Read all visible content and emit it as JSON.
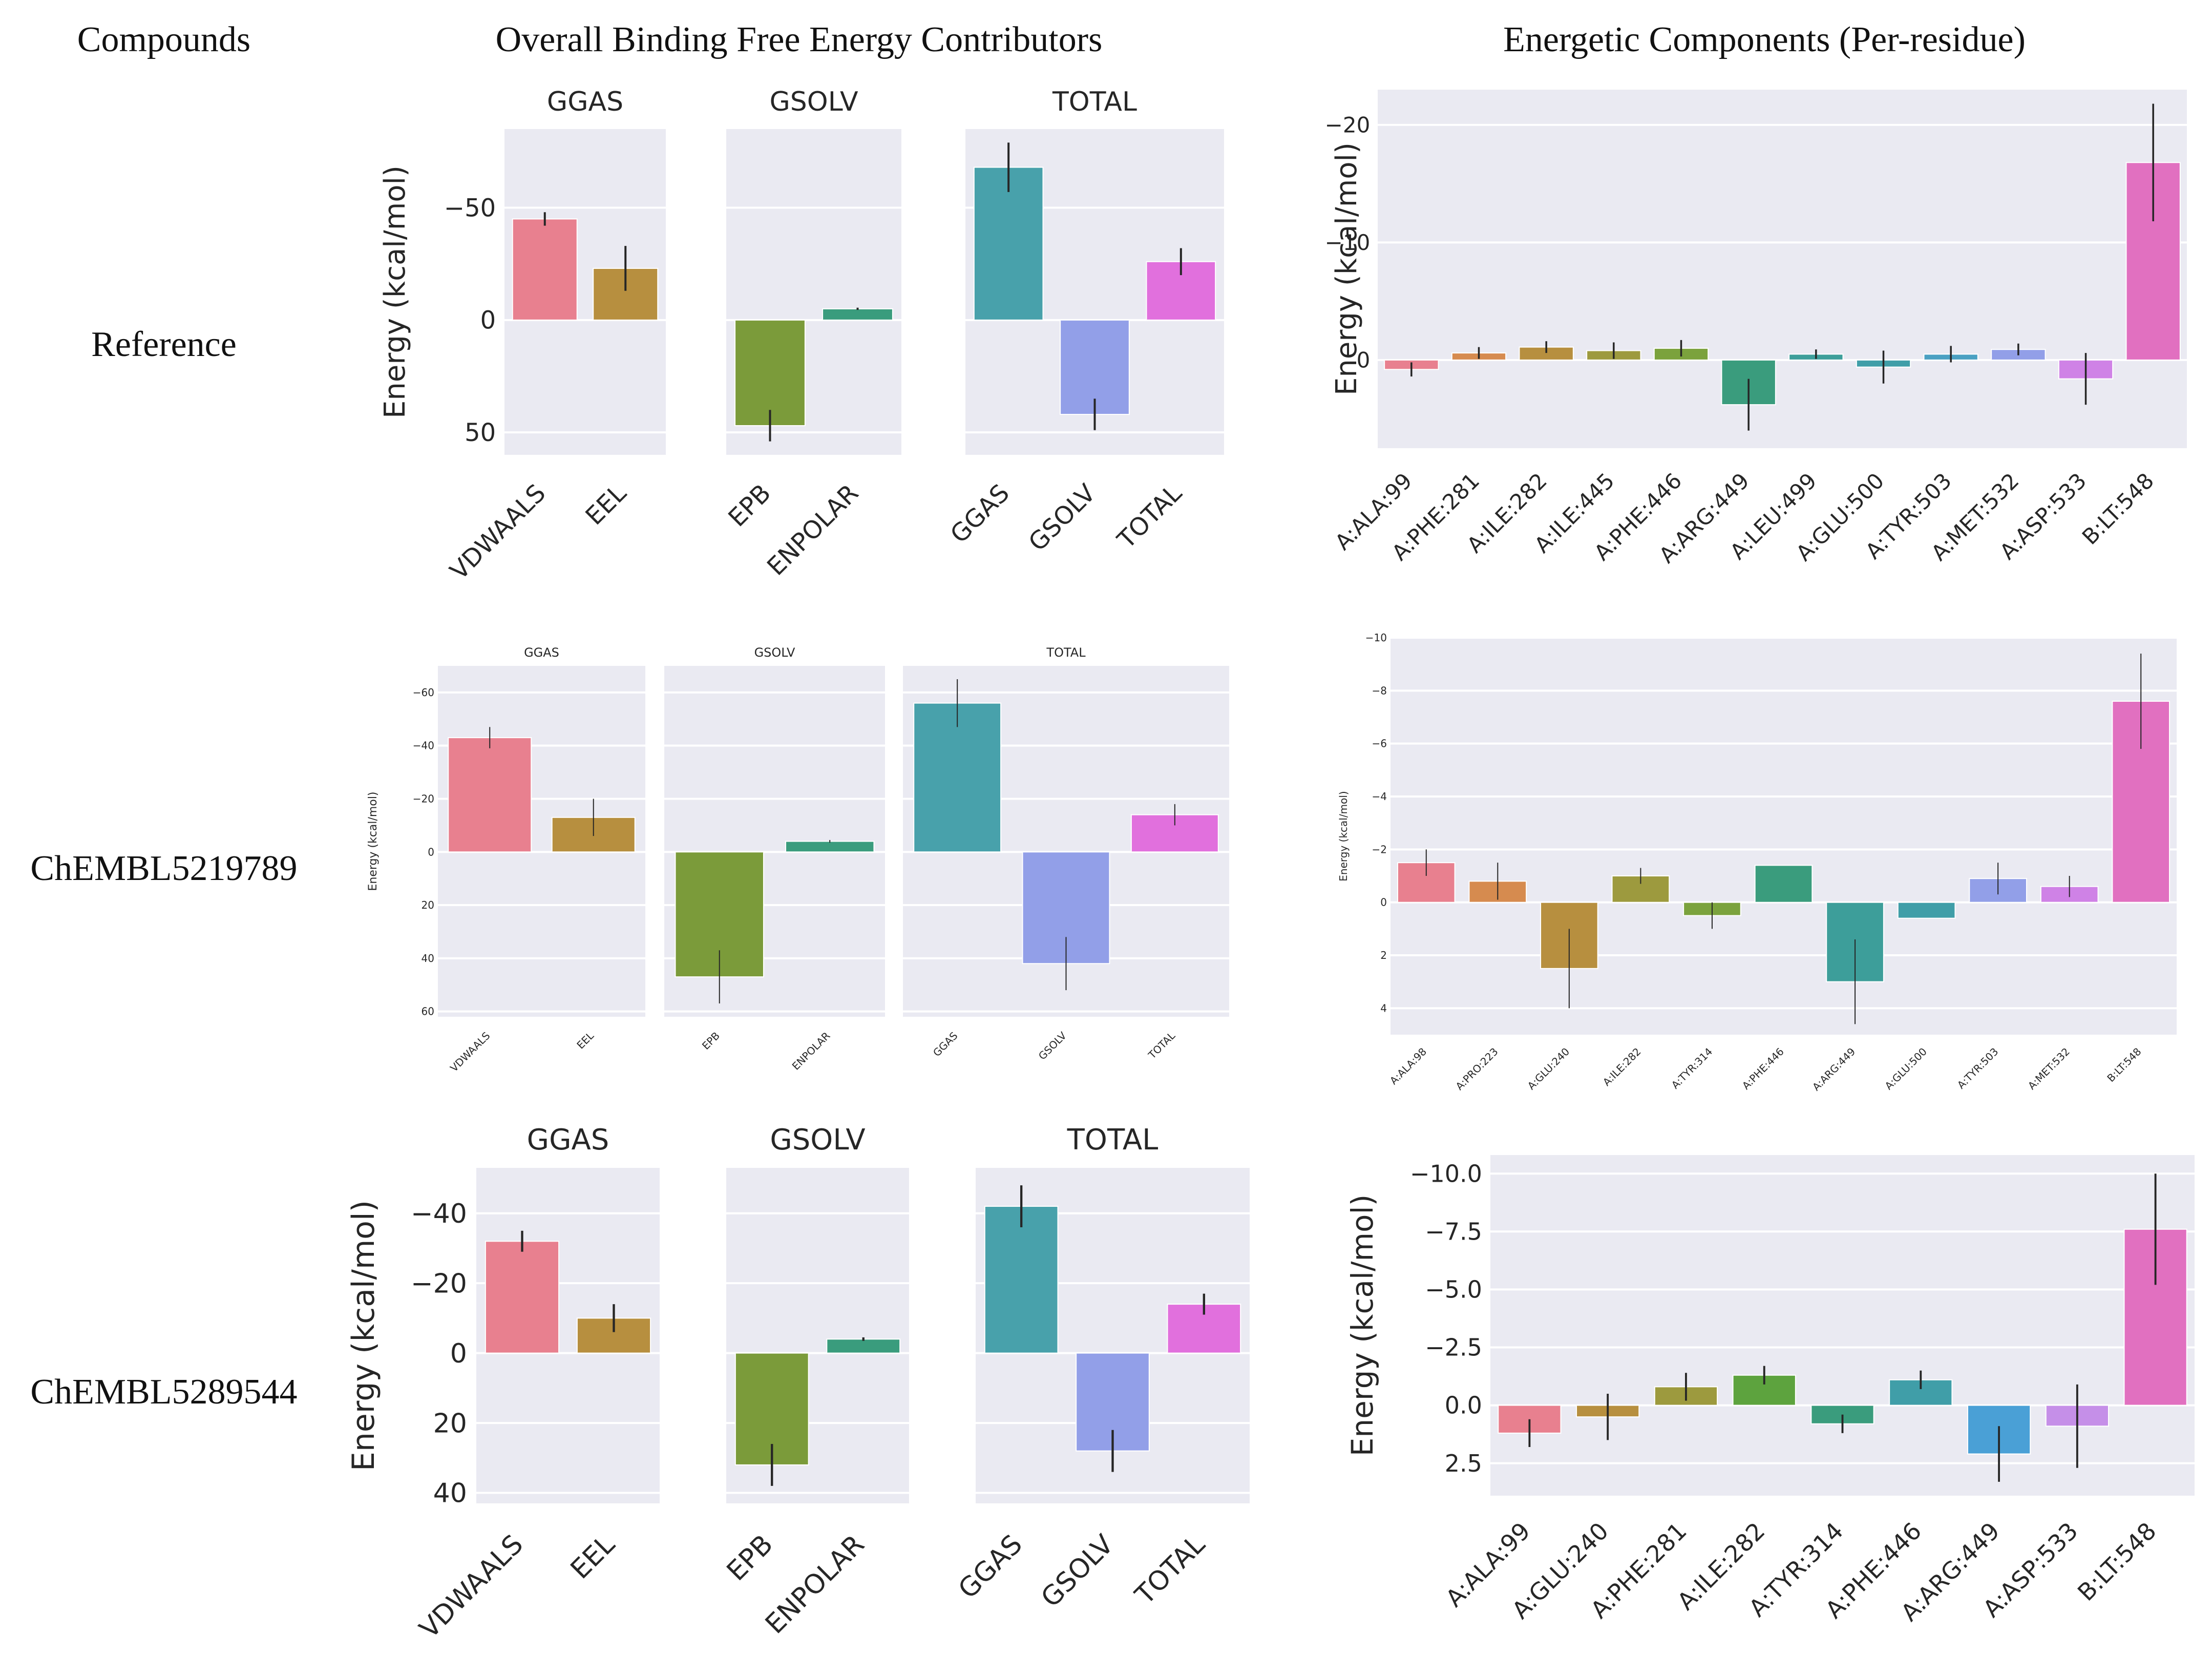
{
  "headers": {
    "compounds": "Compounds",
    "overall": "Overall Binding Free Energy Contributors",
    "per_residue": "Energetic Components (Per-residue)"
  },
  "rows": [
    {
      "label": "Reference"
    },
    {
      "label": "ChEMBL5219789"
    },
    {
      "label": "ChEMBL5289544"
    }
  ],
  "chart_data": [
    {
      "id": "reference-overall",
      "type": "bar",
      "ylabel": "Energy (kcal/mol)",
      "ylim": [
        60,
        -85
      ],
      "yticks": [
        -50,
        0,
        50
      ],
      "grid": true,
      "panels": [
        {
          "title": "GGAS",
          "categories": [
            "VDWAALS",
            "EEL"
          ],
          "values": [
            -45,
            -23
          ],
          "errors": [
            3,
            10
          ],
          "colors": [
            "#e8808f",
            "#b78f3f"
          ]
        },
        {
          "title": "GSOLV",
          "categories": [
            "EPB",
            "ENPOLAR"
          ],
          "values": [
            47,
            -5
          ],
          "errors": [
            7,
            0.5
          ],
          "colors": [
            "#7b9b3a",
            "#3a9c7d"
          ]
        },
        {
          "title": "TOTAL",
          "categories": [
            "GGAS",
            "GSOLV",
            "TOTAL"
          ],
          "values": [
            -68,
            42,
            -26
          ],
          "errors": [
            11,
            7,
            6
          ],
          "colors": [
            "#48a1ab",
            "#929fe8",
            "#e170dd"
          ]
        }
      ]
    },
    {
      "id": "reference-residue",
      "type": "bar",
      "ylabel": "Energy (kcal/mol)",
      "ylim": [
        7.5,
        -23
      ],
      "yticks": [
        -20,
        -10,
        0
      ],
      "grid": true,
      "categories": [
        "A:ALA:99",
        "A:PHE:281",
        "A:ILE:282",
        "A:ILE:445",
        "A:PHE:446",
        "A:ARG:449",
        "A:LEU:499",
        "A:GLU:500",
        "A:TYR:503",
        "A:MET:532",
        "A:ASP:533",
        "B:LT:548"
      ],
      "values": [
        0.8,
        -0.6,
        -1.1,
        -0.8,
        -1.0,
        3.8,
        -0.5,
        0.6,
        -0.5,
        -0.9,
        1.6,
        -16.8
      ],
      "errors": [
        0.6,
        0.5,
        0.5,
        0.7,
        0.7,
        2.2,
        0.4,
        1.4,
        0.7,
        0.5,
        2.2,
        5.0
      ],
      "colors": [
        "#e8808f",
        "#d68b4f",
        "#b78f3f",
        "#9d9a3e",
        "#7ba23d",
        "#3a9c7d",
        "#3d9e9a",
        "#409ea8",
        "#4aa0c2",
        "#929fe8",
        "#cf82e6",
        "#e170c0"
      ]
    },
    {
      "id": "chembl5219789-overall",
      "type": "bar",
      "ylabel": "Energy (kcal/mol)",
      "ylim": [
        62,
        -70
      ],
      "yticks": [
        -60,
        -40,
        -20,
        0,
        20,
        40,
        60
      ],
      "grid": true,
      "panels": [
        {
          "title": "GGAS",
          "categories": [
            "VDWAALS",
            "EEL"
          ],
          "values": [
            -43,
            -13
          ],
          "errors": [
            4,
            7
          ],
          "colors": [
            "#e8808f",
            "#b78f3f"
          ]
        },
        {
          "title": "GSOLV",
          "categories": [
            "EPB",
            "ENPOLAR"
          ],
          "values": [
            47,
            -4
          ],
          "errors": [
            10,
            0.5
          ],
          "colors": [
            "#7b9b3a",
            "#3a9c7d"
          ]
        },
        {
          "title": "TOTAL",
          "categories": [
            "GGAS",
            "GSOLV",
            "TOTAL"
          ],
          "values": [
            -56,
            42,
            -14
          ],
          "errors": [
            9,
            10,
            4
          ],
          "colors": [
            "#48a1ab",
            "#929fe8",
            "#e170dd"
          ]
        }
      ]
    },
    {
      "id": "chembl5219789-residue",
      "type": "bar",
      "ylabel": "Energy (kcal/mol)",
      "ylim": [
        5.0,
        -10.0
      ],
      "yticks": [
        -10,
        -8,
        -6,
        -4,
        -2,
        0,
        2,
        4
      ],
      "grid": true,
      "categories": [
        "A:ALA:98",
        "A:PRO:223",
        "A:GLU:240",
        "A:ILE:282",
        "A:TYR:314",
        "A:PHE:446",
        "A:ARG:449",
        "A:GLU:500",
        "A:TYR:503",
        "A:MET:532",
        "B:LT:548"
      ],
      "values": [
        -1.5,
        -0.8,
        2.5,
        -1.0,
        0.5,
        -1.4,
        3.0,
        0.6,
        -0.9,
        -0.6,
        -7.6
      ],
      "errors": [
        0.5,
        0.7,
        1.5,
        0.3,
        0.5,
        0.0,
        1.6,
        0.0,
        0.6,
        0.4,
        1.8
      ],
      "colors": [
        "#e8808f",
        "#d68b4f",
        "#b78f3f",
        "#9d9a3e",
        "#7ba23d",
        "#3a9c7d",
        "#3d9e9a",
        "#409ea8",
        "#929fe8",
        "#cf82e6",
        "#e170c0"
      ]
    },
    {
      "id": "chembl5289544-overall",
      "type": "bar",
      "ylabel": "Energy (kcal/mol)",
      "ylim": [
        43,
        -53
      ],
      "yticks": [
        -40,
        -20,
        0,
        20,
        40
      ],
      "grid": true,
      "panels": [
        {
          "title": "GGAS",
          "categories": [
            "VDWAALS",
            "EEL"
          ],
          "values": [
            -32,
            -10
          ],
          "errors": [
            3,
            4
          ],
          "colors": [
            "#e8808f",
            "#b78f3f"
          ]
        },
        {
          "title": "GSOLV",
          "categories": [
            "EPB",
            "ENPOLAR"
          ],
          "values": [
            32,
            -4
          ],
          "errors": [
            6,
            0.5
          ],
          "colors": [
            "#7b9b3a",
            "#3a9c7d"
          ]
        },
        {
          "title": "TOTAL",
          "categories": [
            "GGAS",
            "GSOLV",
            "TOTAL"
          ],
          "values": [
            -42,
            28,
            -14
          ],
          "errors": [
            6,
            6,
            3
          ],
          "colors": [
            "#48a1ab",
            "#929fe8",
            "#e170dd"
          ]
        }
      ]
    },
    {
      "id": "chembl5289544-residue",
      "type": "bar",
      "ylabel": "Energy (kcal/mol)",
      "ylim": [
        3.9,
        -10.8
      ],
      "yticks": [
        -10.0,
        -7.5,
        -5.0,
        -2.5,
        0.0,
        2.5
      ],
      "ytick_labels": [
        "−10.0",
        "−7.5",
        "−5.0",
        "−2.5",
        "0.0",
        "2.5"
      ],
      "grid": true,
      "categories": [
        "A:ALA:99",
        "A:GLU:240",
        "A:PHE:281",
        "A:ILE:282",
        "A:TYR:314",
        "A:PHE:446",
        "A:ARG:449",
        "A:ASP:533",
        "B:LT:548"
      ],
      "values": [
        1.2,
        0.5,
        -0.8,
        -1.3,
        0.8,
        -1.1,
        2.1,
        0.9,
        -7.6
      ],
      "errors": [
        0.6,
        1.0,
        0.6,
        0.4,
        0.4,
        0.4,
        1.2,
        1.8,
        2.4
      ],
      "colors": [
        "#e8808f",
        "#b78f3f",
        "#9d9a3e",
        "#5da33e",
        "#3a9c7d",
        "#409ea8",
        "#4aa0d6",
        "#c58fe8",
        "#e170c0"
      ]
    }
  ]
}
